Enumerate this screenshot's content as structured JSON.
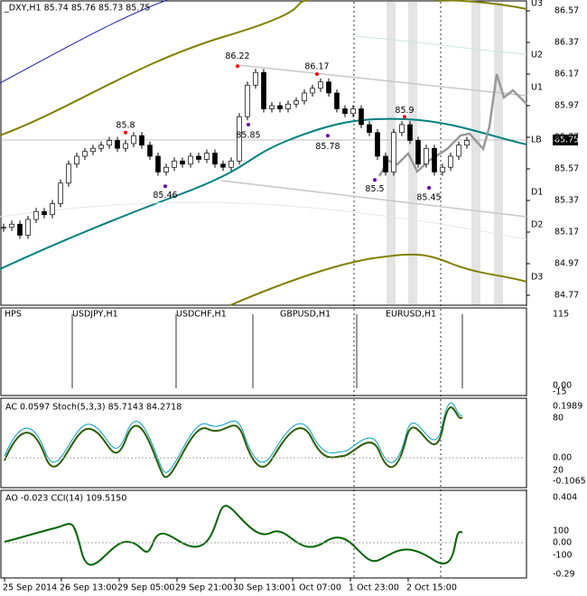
{
  "header": {
    "title": "_DXY,H1 85.74 85.76 85.73 85.75"
  },
  "price_axis": {
    "ticks": [
      86.57,
      86.37,
      86.17,
      85.97,
      85.77,
      85.57,
      85.37,
      85.17,
      84.97,
      84.77
    ],
    "current": 85.75
  },
  "annotations": [
    86.22,
    86.17,
    85.8,
    85.9,
    85.85,
    85.78,
    85.46,
    85.5,
    85.45
  ],
  "levels": [
    "U3",
    "U2",
    "U1",
    "LB",
    "D1",
    "D2",
    "D3"
  ],
  "closes": [
    85.2,
    85.22,
    85.15,
    85.25,
    85.3,
    85.28,
    85.35,
    85.48,
    85.6,
    85.65,
    85.68,
    85.7,
    85.72,
    85.75,
    85.7,
    85.73,
    85.78,
    85.72,
    85.65,
    85.55,
    85.58,
    85.62,
    85.6,
    85.65,
    85.63,
    85.67,
    85.6,
    85.58,
    85.62,
    85.9,
    86.1,
    86.18,
    85.95,
    85.97,
    85.95,
    85.98,
    86.0,
    86.05,
    86.08,
    86.12,
    86.05,
    85.95,
    85.92,
    85.95,
    85.85,
    85.8,
    85.65,
    85.55,
    85.8,
    85.85,
    85.75,
    85.6,
    85.7,
    85.55,
    85.58,
    85.65,
    85.72,
    85.75
  ],
  "panes": [
    {
      "labels": [
        "HPS",
        "USDJPY,H1",
        "USDCHF,H1",
        "GBPUSD,H1",
        "EURUSD,H1"
      ],
      "axis": [
        "115",
        "0.00",
        "-15"
      ]
    },
    {
      "labels": [
        "AC 0.0597  Stoch(5,3,3) 85.7143 84.2718"
      ],
      "axis": [
        "0.1989",
        "80",
        "0.00",
        "20",
        "-0.1065"
      ]
    },
    {
      "labels": [
        "AO -0.023  CCI(14) 109.5150"
      ],
      "axis": [
        "0.404",
        "100",
        "0.00",
        "-100",
        "-0.29"
      ]
    }
  ],
  "time_axis": [
    "25 Sep 2014",
    "26 Sep 13:00",
    "29 Sep 05:00",
    "29 Sep 21:00",
    "30 Sep 13:00",
    "1 Oct 07:00",
    "1 Oct 23:00",
    "2 Oct 15:00"
  ]
}
